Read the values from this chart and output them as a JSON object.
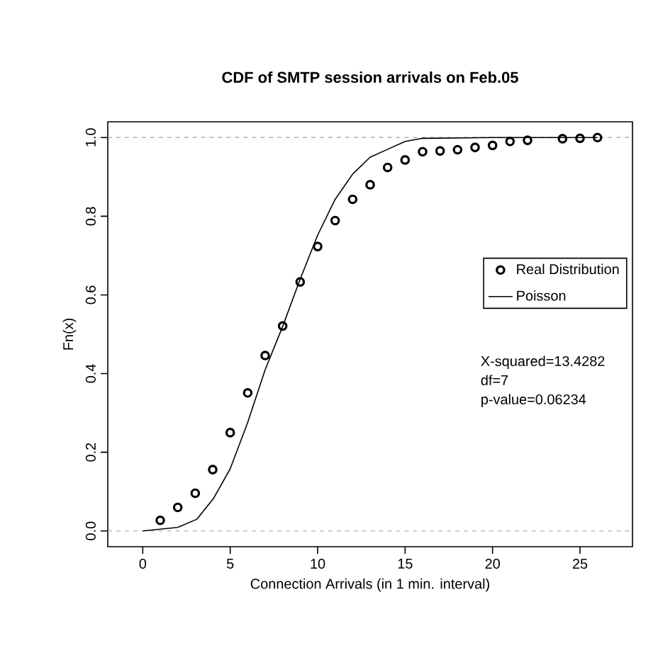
{
  "chart_data": {
    "type": "scatter",
    "title": "CDF of SMTP session arrivals on Feb.05",
    "xlabel": "Connection Arrivals (in 1 min. interval)",
    "ylabel": "Fn(x)",
    "xlim": [
      -2,
      28
    ],
    "ylim": [
      -0.04,
      1.04
    ],
    "xticks": [
      0,
      5,
      10,
      15,
      20,
      25
    ],
    "yticks": [
      {
        "value": 0,
        "label": "0.0"
      },
      0.2,
      0.4,
      0.6,
      0.8,
      {
        "value": 1,
        "label": "1.0"
      }
    ],
    "series": [
      {
        "name": "Real Distribution",
        "marker": "circle",
        "color": "#000000",
        "x": [
          1,
          2,
          3,
          4,
          5,
          6,
          7,
          8,
          9,
          10,
          11,
          12,
          13,
          14,
          15,
          16,
          17,
          18,
          19,
          20,
          21,
          22,
          24,
          25,
          26
        ],
        "values": [
          0.027,
          0.06,
          0.096,
          0.156,
          0.25,
          0.351,
          0.446,
          0.521,
          0.633,
          0.723,
          0.789,
          0.843,
          0.88,
          0.924,
          0.943,
          0.964,
          0.966,
          0.969,
          0.975,
          0.98,
          0.99,
          0.993,
          0.997,
          0.998,
          1.0
        ]
      },
      {
        "name": "Poisson",
        "type": "line",
        "marker": "none",
        "line_style": "solid",
        "color": "#000000",
        "x": [
          0,
          2,
          3.1,
          4.05,
          5,
          6,
          7,
          8,
          9,
          10,
          11,
          12,
          13,
          14,
          15,
          16,
          20,
          26
        ],
        "values": [
          0,
          0.009,
          0.03,
          0.083,
          0.158,
          0.276,
          0.41,
          0.52,
          0.64,
          0.752,
          0.843,
          0.907,
          0.95,
          0.97,
          0.99,
          0.998,
          1.0,
          1.0
        ]
      }
    ],
    "ref_lines": [
      {
        "axis": "y",
        "value": 0,
        "color": "#a0a0a0",
        "line_style": "dashed"
      },
      {
        "axis": "y",
        "value": 1,
        "color": "#a0a0a0",
        "line_style": "dashed"
      }
    ],
    "annotations": [
      "X-squared=13.4282",
      "df=7",
      "p-value=0.06234"
    ],
    "legend": "right",
    "grid": false
  }
}
